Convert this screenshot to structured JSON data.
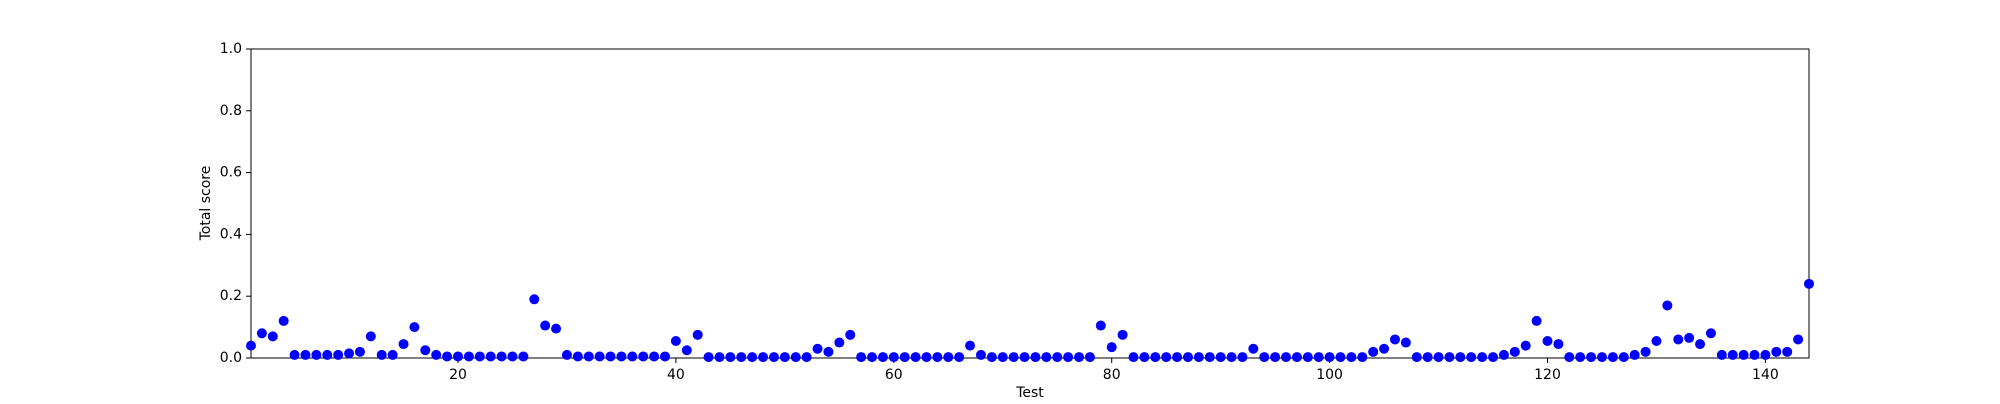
{
  "chart_data": {
    "type": "scatter",
    "x_label": "Test",
    "y_label": "Total score",
    "color": "#0000ff",
    "x": [
      1,
      2,
      3,
      4,
      5,
      6,
      7,
      8,
      9,
      10,
      11,
      12,
      13,
      14,
      15,
      16,
      17,
      18,
      19,
      20,
      21,
      22,
      23,
      24,
      25,
      26,
      27,
      28,
      29,
      30,
      31,
      32,
      33,
      34,
      35,
      36,
      37,
      38,
      39,
      40,
      41,
      42,
      43,
      44,
      45,
      46,
      47,
      48,
      49,
      50,
      51,
      52,
      53,
      54,
      55,
      56,
      57,
      58,
      59,
      60,
      61,
      62,
      63,
      64,
      65,
      66,
      67,
      68,
      69,
      70,
      71,
      72,
      73,
      74,
      75,
      76,
      77,
      78,
      79,
      80,
      81,
      82,
      83,
      84,
      85,
      86,
      87,
      88,
      89,
      90,
      91,
      92,
      93,
      94,
      95,
      96,
      97,
      98,
      99,
      100,
      101,
      102,
      103,
      104,
      105,
      106,
      107,
      108,
      109,
      110,
      111,
      112,
      113,
      114,
      115,
      116,
      117,
      118,
      119,
      120,
      121,
      122,
      123,
      124,
      125,
      126,
      127,
      128,
      129,
      130,
      131,
      132,
      133,
      134,
      135,
      136,
      137,
      138,
      139,
      140,
      141,
      142,
      143,
      144
    ],
    "values": [
      0.04,
      0.08,
      0.07,
      0.12,
      0.01,
      0.01,
      0.01,
      0.01,
      0.01,
      0.015,
      0.02,
      0.07,
      0.01,
      0.01,
      0.045,
      0.1,
      0.025,
      0.01,
      0.005,
      0.005,
      0.005,
      0.005,
      0.005,
      0.005,
      0.005,
      0.005,
      0.19,
      0.105,
      0.095,
      0.01,
      0.005,
      0.005,
      0.005,
      0.005,
      0.005,
      0.005,
      0.005,
      0.005,
      0.005,
      0.055,
      0.025,
      0.075,
      0.003,
      0.003,
      0.003,
      0.003,
      0.003,
      0.003,
      0.003,
      0.003,
      0.003,
      0.003,
      0.03,
      0.02,
      0.05,
      0.075,
      0.003,
      0.003,
      0.003,
      0.003,
      0.003,
      0.003,
      0.003,
      0.003,
      0.003,
      0.003,
      0.04,
      0.01,
      0.003,
      0.003,
      0.003,
      0.003,
      0.003,
      0.003,
      0.003,
      0.003,
      0.003,
      0.003,
      0.105,
      0.035,
      0.075,
      0.003,
      0.003,
      0.003,
      0.003,
      0.003,
      0.003,
      0.003,
      0.003,
      0.003,
      0.003,
      0.003,
      0.03,
      0.003,
      0.003,
      0.003,
      0.003,
      0.003,
      0.003,
      0.003,
      0.003,
      0.003,
      0.003,
      0.02,
      0.03,
      0.06,
      0.05,
      0.003,
      0.003,
      0.003,
      0.003,
      0.003,
      0.003,
      0.003,
      0.003,
      0.01,
      0.02,
      0.04,
      0.12,
      0.055,
      0.045,
      0.003,
      0.003,
      0.003,
      0.003,
      0.003,
      0.003,
      0.01,
      0.02,
      0.055,
      0.17,
      0.06,
      0.065,
      0.045,
      0.08,
      0.01,
      0.01,
      0.01,
      0.01,
      0.01,
      0.02,
      0.02,
      0.06,
      0.24
    ],
    "xlim": [
      1,
      144
    ],
    "xticks": [
      20,
      40,
      60,
      80,
      100,
      120,
      140
    ],
    "ylim": [
      0,
      1
    ],
    "yticks": [
      {
        "value": 0,
        "label": "0.0"
      },
      0.2,
      0.4,
      0.6,
      0.8,
      {
        "value": 1,
        "label": "1.0"
      }
    ]
  }
}
